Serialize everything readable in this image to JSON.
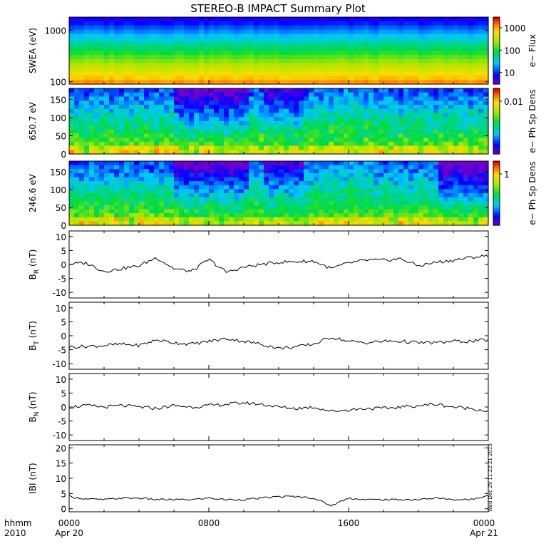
{
  "title": "STEREO-B IMPACT Summary Plot",
  "stamp": "Wed Dec 29 11:22:21 2010",
  "x_axis": {
    "row1_labels": [
      "hhmm",
      "0000",
      "0800",
      "1600",
      "0000"
    ],
    "row2_labels": [
      "2010",
      "Apr 20",
      "Apr 21"
    ]
  },
  "chart_data": [
    {
      "type": "heatmap",
      "ylabel": "SWEA (eV)",
      "scale": "log",
      "ylim": [
        90,
        1800
      ],
      "yticks": [
        "1000",
        "100"
      ],
      "colorbar": {
        "label": "e− Flux",
        "ticks": [
          "1000",
          "100",
          "10"
        ],
        "range": [
          3,
          3000
        ]
      }
    },
    {
      "type": "heatmap",
      "ylabel": "650.7 eV",
      "ylim": [
        0,
        180
      ],
      "yticks": [
        "150",
        "100",
        "50",
        "0"
      ],
      "colorbar": {
        "label": "e− Ph Sp Dens",
        "ticks": [
          "0.01"
        ]
      }
    },
    {
      "type": "heatmap",
      "ylabel": "246.6 eV",
      "ylim": [
        0,
        180
      ],
      "yticks": [
        "150",
        "100",
        "50",
        "0"
      ],
      "colorbar": {
        "label": "e− Ph Sp Dens",
        "ticks": [
          "1"
        ]
      }
    },
    {
      "type": "line",
      "ylabel": "B",
      "ysub": "R",
      "yunit": " (nT)",
      "ylim": [
        -12,
        12
      ],
      "yticks": [
        "10",
        "5",
        "0",
        "-5",
        "-10"
      ],
      "x": [
        0,
        1,
        2,
        3,
        4,
        5,
        6,
        7,
        8,
        9,
        10,
        11,
        12,
        13,
        14,
        15,
        16,
        17,
        18,
        19,
        20,
        21,
        22,
        23,
        24
      ],
      "values": [
        0.2,
        0.5,
        -2.5,
        -1.5,
        -0.5,
        2.5,
        -1.5,
        -2.5,
        1.8,
        -2.8,
        -1.0,
        0.0,
        0.8,
        1.0,
        1.2,
        -1.5,
        0.5,
        1.5,
        1.5,
        2.0,
        -0.5,
        0.8,
        1.5,
        2.5,
        3.2
      ]
    },
    {
      "type": "line",
      "ylabel": "B",
      "ysub": "T",
      "yunit": " (nT)",
      "ylim": [
        -12,
        12
      ],
      "yticks": [
        "10",
        "5",
        "0",
        "-5",
        "-10"
      ],
      "x": [
        0,
        1,
        2,
        3,
        4,
        5,
        6,
        7,
        8,
        9,
        10,
        11,
        12,
        13,
        14,
        15,
        16,
        17,
        18,
        19,
        20,
        21,
        22,
        23,
        24
      ],
      "values": [
        -4.0,
        -3.8,
        -3.5,
        -3.0,
        -3.5,
        -1.5,
        -2.5,
        -3.0,
        -2.0,
        -1.0,
        -2.0,
        -3.0,
        -4.5,
        -4.0,
        -3.0,
        -0.5,
        -2.0,
        -2.5,
        -2.0,
        -2.0,
        -2.5,
        -2.5,
        -2.0,
        -2.0,
        -1.5
      ]
    },
    {
      "type": "line",
      "ylabel": "B",
      "ysub": "N",
      "yunit": " (nT)",
      "ylim": [
        -12,
        12
      ],
      "yticks": [
        "10",
        "5",
        "0",
        "-5",
        "-10"
      ],
      "x": [
        0,
        1,
        2,
        3,
        4,
        5,
        6,
        7,
        8,
        9,
        10,
        11,
        12,
        13,
        14,
        15,
        16,
        17,
        18,
        19,
        20,
        21,
        22,
        23,
        24
      ],
      "values": [
        0.0,
        0.5,
        0.0,
        0.5,
        0.0,
        -0.5,
        0.5,
        0.0,
        0.5,
        1.0,
        1.5,
        1.0,
        0.0,
        -0.5,
        0.0,
        -1.5,
        -1.0,
        -0.5,
        -0.5,
        0.0,
        0.5,
        1.0,
        0.0,
        -0.5,
        -1.5
      ]
    },
    {
      "type": "line",
      "ylabel": "IBI (nT)",
      "ylim": [
        -1,
        21
      ],
      "yticks": [
        "20",
        "15",
        "10",
        "5",
        "0"
      ],
      "x": [
        0,
        1,
        2,
        3,
        4,
        5,
        6,
        7,
        8,
        9,
        10,
        11,
        12,
        13,
        14,
        15,
        16,
        17,
        18,
        19,
        20,
        21,
        22,
        23,
        24
      ],
      "values": [
        4.0,
        3.2,
        3.0,
        3.5,
        3.5,
        3.0,
        3.0,
        3.0,
        3.5,
        3.0,
        3.0,
        3.5,
        4.0,
        4.0,
        3.5,
        1.0,
        3.5,
        3.0,
        3.0,
        3.0,
        3.0,
        3.5,
        3.0,
        3.0,
        4.5
      ]
    }
  ]
}
